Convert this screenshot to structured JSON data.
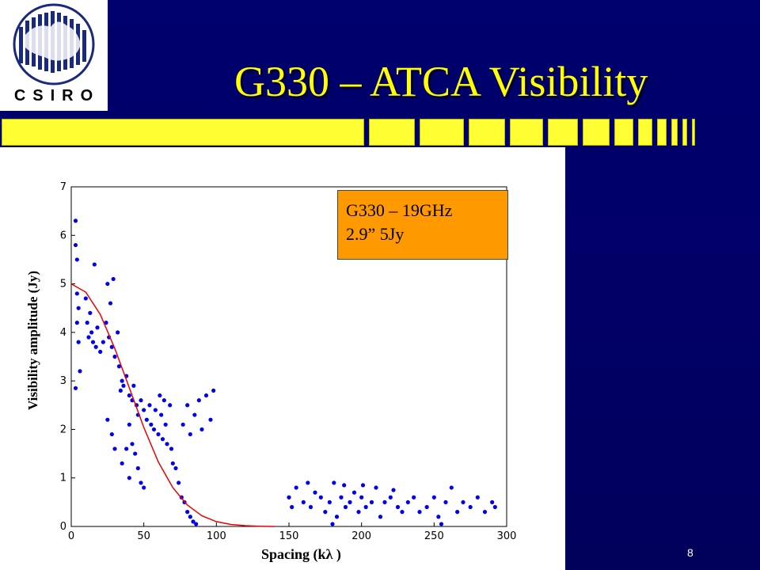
{
  "logo": {
    "text": "CSIRO"
  },
  "slide": {
    "title": "G330 – ATCA Visibility",
    "page_number": "8"
  },
  "colors": {
    "background": "#000066",
    "title": "#ffff00",
    "accent_bar": "#ffff33",
    "annotation_box": "#ff9900",
    "points": "#0000ee",
    "model_curve": "#ee0000"
  },
  "chart_data": {
    "type": "scatter",
    "xlabel": "Spacing (kλ )",
    "ylabel": "Visibility amplitude (Jy)",
    "xlim": [
      0,
      300
    ],
    "ylim": [
      0,
      7
    ],
    "xticks": [
      "0",
      "50",
      "100",
      "150",
      "200",
      "250",
      "300"
    ],
    "yticks": [
      "0",
      "1",
      "2",
      "3",
      "4",
      "5",
      "6",
      "7"
    ],
    "annotation": {
      "line1": "G330 – 19GHz",
      "line2": "2.9”  5Jy"
    },
    "series": [
      {
        "type": "scatter",
        "points": [
          [
            3,
            6.3
          ],
          [
            3,
            5.8
          ],
          [
            4,
            5.5
          ],
          [
            4,
            4.8
          ],
          [
            4,
            4.2
          ],
          [
            5,
            3.8
          ],
          [
            3,
            2.85
          ],
          [
            5,
            4.5
          ],
          [
            6,
            3.2
          ],
          [
            10,
            4.7
          ],
          [
            11,
            4.2
          ],
          [
            12,
            3.9
          ],
          [
            13,
            4.4
          ],
          [
            14,
            4.0
          ],
          [
            15,
            3.8
          ],
          [
            16,
            5.4
          ],
          [
            17,
            3.7
          ],
          [
            18,
            4.1
          ],
          [
            20,
            3.6
          ],
          [
            22,
            3.8
          ],
          [
            24,
            4.2
          ],
          [
            25,
            5.0
          ],
          [
            26,
            3.9
          ],
          [
            27,
            4.6
          ],
          [
            28,
            3.7
          ],
          [
            29,
            5.1
          ],
          [
            30,
            3.5
          ],
          [
            32,
            4.0
          ],
          [
            33,
            3.3
          ],
          [
            34,
            2.8
          ],
          [
            35,
            3.0
          ],
          [
            36,
            2.9
          ],
          [
            38,
            3.1
          ],
          [
            40,
            2.7
          ],
          [
            42,
            2.6
          ],
          [
            43,
            2.9
          ],
          [
            45,
            2.5
          ],
          [
            46,
            2.3
          ],
          [
            48,
            2.6
          ],
          [
            50,
            2.4
          ],
          [
            52,
            2.2
          ],
          [
            54,
            2.5
          ],
          [
            55,
            2.1
          ],
          [
            57,
            2.0
          ],
          [
            58,
            2.4
          ],
          [
            60,
            1.9
          ],
          [
            61,
            2.7
          ],
          [
            62,
            2.3
          ],
          [
            63,
            1.8
          ],
          [
            64,
            2.6
          ],
          [
            65,
            2.1
          ],
          [
            66,
            1.7
          ],
          [
            68,
            2.5
          ],
          [
            69,
            1.6
          ],
          [
            70,
            1.3
          ],
          [
            72,
            1.2
          ],
          [
            74,
            0.9
          ],
          [
            76,
            0.6
          ],
          [
            78,
            0.5
          ],
          [
            80,
            0.3
          ],
          [
            82,
            0.2
          ],
          [
            84,
            0.1
          ],
          [
            86,
            0.05
          ],
          [
            40,
            2.1
          ],
          [
            42,
            1.7
          ],
          [
            44,
            1.5
          ],
          [
            46,
            1.2
          ],
          [
            48,
            0.9
          ],
          [
            50,
            0.8
          ],
          [
            77,
            2.1
          ],
          [
            80,
            2.5
          ],
          [
            82,
            1.9
          ],
          [
            85,
            2.3
          ],
          [
            88,
            2.6
          ],
          [
            90,
            2.0
          ],
          [
            93,
            2.7
          ],
          [
            96,
            2.2
          ],
          [
            98,
            2.8
          ],
          [
            30,
            1.6
          ],
          [
            35,
            1.3
          ],
          [
            38,
            1.6
          ],
          [
            40,
            1.0
          ],
          [
            25,
            2.2
          ],
          [
            28,
            1.9
          ],
          [
            150,
            0.6
          ],
          [
            152,
            0.4
          ],
          [
            155,
            0.8
          ],
          [
            160,
            0.5
          ],
          [
            163,
            0.9
          ],
          [
            165,
            0.4
          ],
          [
            168,
            0.7
          ],
          [
            172,
            0.6
          ],
          [
            175,
            0.3
          ],
          [
            178,
            0.5
          ],
          [
            181,
            0.9
          ],
          [
            183,
            0.2
          ],
          [
            186,
            0.6
          ],
          [
            189,
            0.4
          ],
          [
            192,
            0.5
          ],
          [
            195,
            0.7
          ],
          [
            198,
            0.3
          ],
          [
            200,
            0.6
          ],
          [
            203,
            0.4
          ],
          [
            207,
            0.5
          ],
          [
            210,
            0.8
          ],
          [
            213,
            0.2
          ],
          [
            216,
            0.5
          ],
          [
            220,
            0.6
          ],
          [
            225,
            0.4
          ],
          [
            228,
            0.3
          ],
          [
            232,
            0.5
          ],
          [
            236,
            0.6
          ],
          [
            240,
            0.3
          ],
          [
            245,
            0.4
          ],
          [
            250,
            0.6
          ],
          [
            253,
            0.2
          ],
          [
            258,
            0.5
          ],
          [
            262,
            0.8
          ],
          [
            266,
            0.3
          ],
          [
            270,
            0.5
          ],
          [
            275,
            0.4
          ],
          [
            280,
            0.6
          ],
          [
            285,
            0.3
          ],
          [
            290,
            0.5
          ],
          [
            292,
            0.4
          ],
          [
            180,
            0.05
          ],
          [
            255,
            0.05
          ],
          [
            188,
            0.85
          ],
          [
            201,
            0.85
          ],
          [
            222,
            0.75
          ]
        ]
      },
      {
        "type": "line",
        "points": [
          [
            0,
            5.0
          ],
          [
            10,
            4.83
          ],
          [
            20,
            4.37
          ],
          [
            30,
            3.67
          ],
          [
            40,
            2.86
          ],
          [
            50,
            2.04
          ],
          [
            60,
            1.33
          ],
          [
            70,
            0.8
          ],
          [
            80,
            0.44
          ],
          [
            90,
            0.22
          ],
          [
            100,
            0.1
          ],
          [
            110,
            0.04
          ],
          [
            120,
            0.016
          ],
          [
            130,
            0.005
          ],
          [
            140,
            0.0
          ]
        ]
      }
    ]
  }
}
